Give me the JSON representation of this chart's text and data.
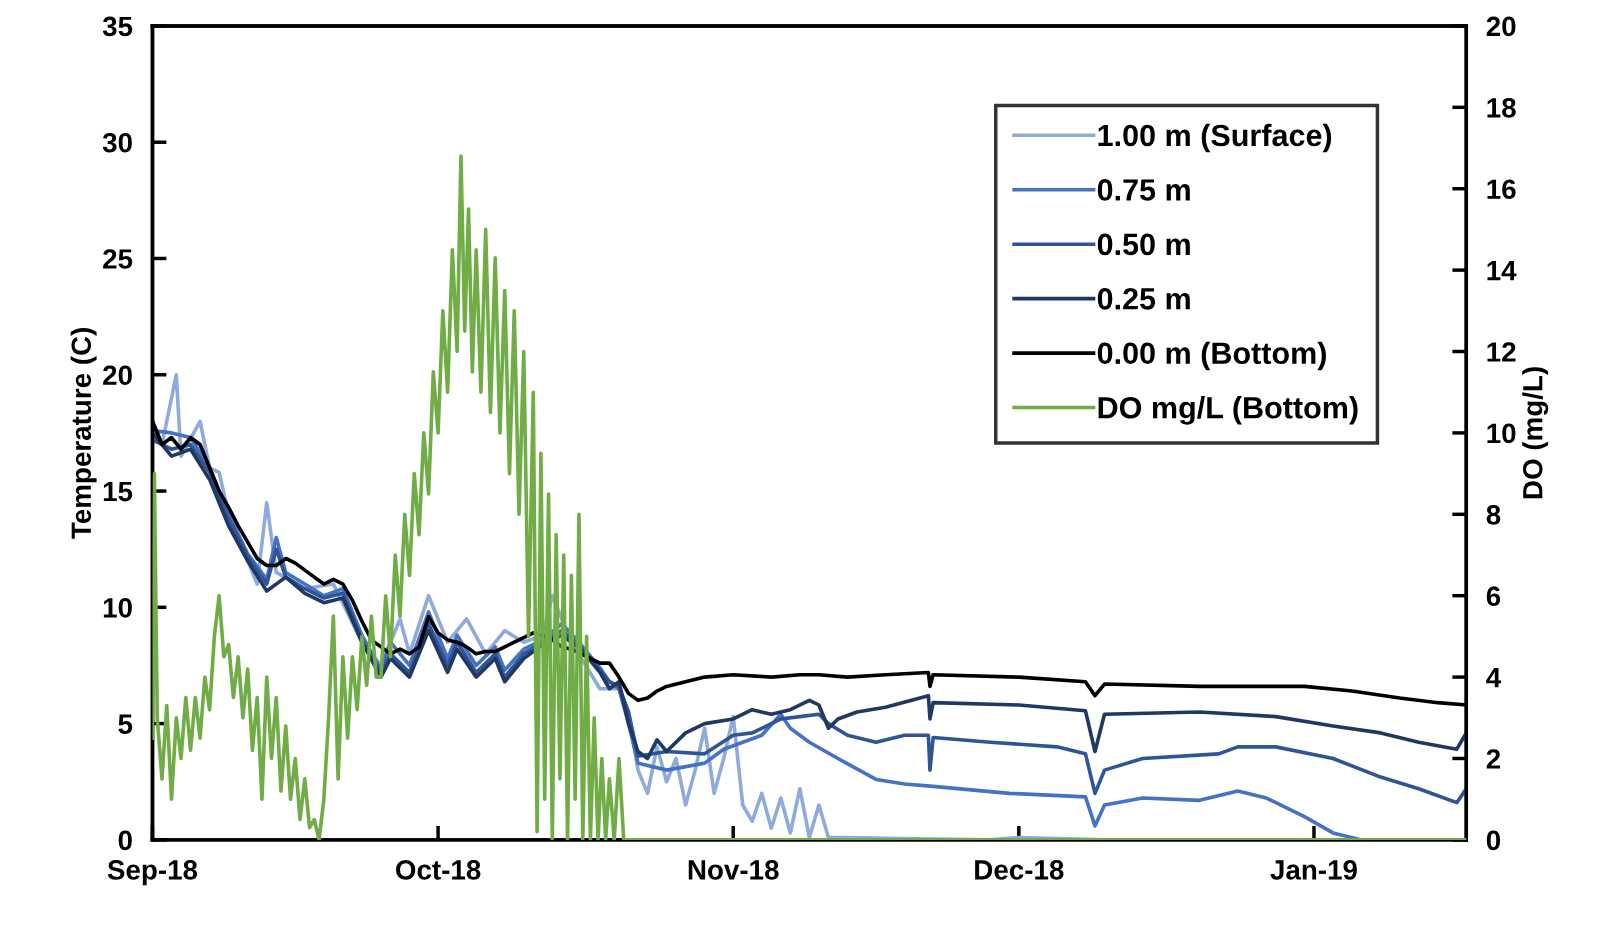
{
  "chart_data": {
    "type": "line",
    "ylabel": "Temperature (C)",
    "y2label": "DO (mg/L)",
    "xlim": [
      "2018-09-01",
      "2019-01-17"
    ],
    "xticks": [
      {
        "value": "2018-09-01",
        "label": "Sep-18"
      },
      {
        "value": "2018-10-01",
        "label": "Oct-18"
      },
      {
        "value": "2018-11-01",
        "label": "Nov-18"
      },
      {
        "value": "2018-12-01",
        "label": "Dec-18"
      },
      {
        "value": "2019-01-01",
        "label": "Jan-19"
      }
    ],
    "ylim": [
      0,
      35
    ],
    "yticks": [
      0,
      5,
      10,
      15,
      20,
      25,
      30,
      35
    ],
    "y2lim": [
      0,
      20
    ],
    "y2ticks": [
      0,
      2,
      4,
      6,
      8,
      10,
      12,
      14,
      16,
      18,
      20
    ],
    "legend": "top right",
    "series": [
      {
        "name": "1.00 m (Surface)",
        "color": "#8faadc",
        "x": [
          "2018-09-01",
          "2018-09-02",
          "2018-09-03T12:00",
          "2018-09-04",
          "2018-09-06",
          "2018-09-07",
          "2018-09-08",
          "2018-09-09",
          "2018-09-12",
          "2018-09-13",
          "2018-09-14",
          "2018-09-17",
          "2018-09-20",
          "2018-09-23",
          "2018-09-25",
          "2018-09-27",
          "2018-09-28",
          "2018-09-30",
          "2018-10-02",
          "2018-10-04",
          "2018-10-06",
          "2018-10-08",
          "2018-10-10",
          "2018-10-12",
          "2018-10-13",
          "2018-10-15",
          "2018-10-18",
          "2018-10-20",
          "2018-10-21",
          "2018-10-22",
          "2018-10-23",
          "2018-10-24",
          "2018-10-25",
          "2018-10-26",
          "2018-10-27",
          "2018-10-28",
          "2018-10-29",
          "2018-10-30",
          "2018-10-31",
          "2018-11-01",
          "2018-11-02",
          "2018-11-03",
          "2018-11-04",
          "2018-11-05",
          "2018-11-06",
          "2018-11-07",
          "2018-11-08",
          "2018-11-09",
          "2018-11-10",
          "2018-11-11",
          "2018-11-13",
          "2018-11-20",
          "2018-11-28",
          "2018-12-01",
          "2018-12-10",
          "2019-01-17"
        ],
        "values": [
          18.0,
          17.0,
          20.0,
          16.5,
          18.0,
          16.0,
          15.8,
          14.0,
          11.0,
          14.5,
          11.5,
          10.8,
          11.0,
          8.5,
          7.5,
          9.5,
          8.0,
          10.5,
          8.5,
          9.5,
          8.0,
          9.0,
          8.5,
          8.8,
          10.5,
          8.5,
          6.5,
          6.5,
          5.5,
          3.0,
          2.0,
          4.0,
          2.5,
          3.5,
          1.5,
          3.0,
          4.8,
          2.0,
          3.5,
          5.3,
          1.5,
          0.8,
          2.0,
          0.5,
          1.8,
          0.3,
          2.2,
          0.1,
          1.5,
          0.1,
          0.1,
          0.05,
          0.0,
          0.1,
          0.0,
          0.0
        ]
      },
      {
        "name": "0.75 m",
        "color": "#4472c4",
        "x": [
          "2018-09-01",
          "2018-09-03",
          "2018-09-05",
          "2018-09-07",
          "2018-09-09",
          "2018-09-11",
          "2018-09-13",
          "2018-09-14",
          "2018-09-15",
          "2018-09-17",
          "2018-09-19",
          "2018-09-21",
          "2018-09-23",
          "2018-09-25",
          "2018-09-26",
          "2018-09-28",
          "2018-09-30",
          "2018-10-02",
          "2018-10-03",
          "2018-10-05",
          "2018-10-07",
          "2018-10-08",
          "2018-10-10",
          "2018-10-12",
          "2018-10-14",
          "2018-10-16",
          "2018-10-18",
          "2018-10-19",
          "2018-10-20",
          "2018-10-21",
          "2018-10-22",
          "2018-10-25",
          "2018-10-29",
          "2018-10-31",
          "2018-11-02",
          "2018-11-04",
          "2018-11-06",
          "2018-11-07",
          "2018-11-09",
          "2018-11-12",
          "2018-11-16",
          "2018-11-19",
          "2018-11-22",
          "2018-11-30",
          "2018-12-08",
          "2018-12-09",
          "2018-12-10",
          "2018-12-14",
          "2018-12-20",
          "2018-12-24",
          "2018-12-27",
          "2018-12-31",
          "2019-01-03",
          "2019-01-06",
          "2019-01-17"
        ],
        "values": [
          17.6,
          17.5,
          17.3,
          16.0,
          14.0,
          12.3,
          11.2,
          13.0,
          11.5,
          11.0,
          10.5,
          10.8,
          8.8,
          7.3,
          8.5,
          7.5,
          9.8,
          7.8,
          8.8,
          7.5,
          8.3,
          7.3,
          8.2,
          8.6,
          9.3,
          8.4,
          7.4,
          6.8,
          6.5,
          5.0,
          3.3,
          3.0,
          3.3,
          3.9,
          4.2,
          4.5,
          5.4,
          4.8,
          4.2,
          3.5,
          2.6,
          2.4,
          2.3,
          2.0,
          1.85,
          0.6,
          1.5,
          1.8,
          1.7,
          2.1,
          1.8,
          1.0,
          0.3,
          0.0,
          0.0
        ]
      },
      {
        "name": "0.50 m",
        "color": "#2f5597",
        "x": [
          "2018-09-01",
          "2018-09-03",
          "2018-09-05",
          "2018-09-07",
          "2018-09-09",
          "2018-09-11",
          "2018-09-13",
          "2018-09-14",
          "2018-09-15",
          "2018-09-17",
          "2018-09-19",
          "2018-09-21",
          "2018-09-23",
          "2018-09-25",
          "2018-09-26",
          "2018-09-28",
          "2018-09-30",
          "2018-10-02",
          "2018-10-03",
          "2018-10-05",
          "2018-10-07",
          "2018-10-08",
          "2018-10-10",
          "2018-10-12",
          "2018-10-14",
          "2018-10-16",
          "2018-10-18",
          "2018-10-19",
          "2018-10-20",
          "2018-10-21",
          "2018-10-22",
          "2018-10-25",
          "2018-10-29",
          "2018-11-01",
          "2018-11-03",
          "2018-11-05",
          "2018-11-06",
          "2018-11-08",
          "2018-11-10",
          "2018-11-11",
          "2018-11-13",
          "2018-11-16",
          "2018-11-19",
          "2018-11-21T12:00",
          "2018-11-21T16:00",
          "2018-11-22",
          "2018-11-28",
          "2018-12-05",
          "2018-12-08",
          "2018-12-09",
          "2018-12-10",
          "2018-12-14",
          "2018-12-22",
          "2018-12-24",
          "2018-12-28",
          "2019-01-03",
          "2019-01-08",
          "2019-01-12",
          "2019-01-16",
          "2019-01-17"
        ],
        "values": [
          17.2,
          16.8,
          17.0,
          15.8,
          13.8,
          12.2,
          11.0,
          12.5,
          11.3,
          10.8,
          10.4,
          10.6,
          8.6,
          7.2,
          8.0,
          7.2,
          9.3,
          7.5,
          8.5,
          7.2,
          8.0,
          7.0,
          8.0,
          8.5,
          9.0,
          8.3,
          7.3,
          6.8,
          6.6,
          5.5,
          3.6,
          3.8,
          3.7,
          4.5,
          4.6,
          5.0,
          5.2,
          5.3,
          5.4,
          5.0,
          4.5,
          4.2,
          4.5,
          4.5,
          3.0,
          4.4,
          4.2,
          4.0,
          3.7,
          2.0,
          3.0,
          3.5,
          3.7,
          4.0,
          4.0,
          3.5,
          2.7,
          2.2,
          1.6,
          2.2
        ]
      },
      {
        "name": "0.25 m",
        "color": "#1f3864",
        "x": [
          "2018-09-01",
          "2018-09-03",
          "2018-09-05",
          "2018-09-07",
          "2018-09-09",
          "2018-09-11",
          "2018-09-13",
          "2018-09-15",
          "2018-09-17",
          "2018-09-19",
          "2018-09-21",
          "2018-09-23",
          "2018-09-25",
          "2018-09-26",
          "2018-09-28",
          "2018-09-30",
          "2018-10-02",
          "2018-10-03",
          "2018-10-05",
          "2018-10-07",
          "2018-10-08",
          "2018-10-10",
          "2018-10-12",
          "2018-10-14",
          "2018-10-16",
          "2018-10-18",
          "2018-10-19",
          "2018-10-20",
          "2018-10-21",
          "2018-10-22",
          "2018-10-23",
          "2018-10-24",
          "2018-10-25",
          "2018-10-27",
          "2018-10-29",
          "2018-11-01",
          "2018-11-03",
          "2018-11-05",
          "2018-11-07",
          "2018-11-09",
          "2018-11-10",
          "2018-11-11",
          "2018-11-12",
          "2018-11-14",
          "2018-11-17",
          "2018-11-21T12:00",
          "2018-11-21T16:00",
          "2018-11-22",
          "2018-12-01",
          "2018-12-08",
          "2018-12-09",
          "2018-12-10",
          "2018-12-20",
          "2018-12-28",
          "2019-01-03",
          "2019-01-08",
          "2019-01-12",
          "2019-01-16",
          "2019-01-17"
        ],
        "values": [
          17.5,
          16.5,
          16.8,
          15.5,
          13.5,
          12.0,
          10.7,
          11.3,
          10.6,
          10.2,
          10.4,
          8.5,
          7.0,
          7.8,
          7.0,
          9.0,
          7.2,
          8.2,
          7.0,
          7.8,
          6.8,
          7.8,
          8.4,
          8.8,
          8.2,
          7.2,
          6.5,
          6.8,
          5.0,
          3.8,
          3.5,
          4.3,
          3.8,
          4.6,
          5.0,
          5.2,
          5.6,
          5.4,
          5.6,
          6.0,
          5.8,
          4.8,
          5.2,
          5.5,
          5.7,
          6.2,
          5.2,
          5.9,
          5.8,
          5.55,
          3.8,
          5.4,
          5.5,
          5.3,
          4.9,
          4.6,
          4.2,
          3.9,
          4.6
        ]
      },
      {
        "name": "0.00 m (Bottom)",
        "color": "#000000",
        "x": [
          "2018-09-01",
          "2018-09-02",
          "2018-09-03",
          "2018-09-04",
          "2018-09-05",
          "2018-09-06",
          "2018-09-07",
          "2018-09-08",
          "2018-09-09",
          "2018-09-10",
          "2018-09-11",
          "2018-09-12",
          "2018-09-13",
          "2018-09-14",
          "2018-09-15",
          "2018-09-16",
          "2018-09-17",
          "2018-09-18",
          "2018-09-19",
          "2018-09-20",
          "2018-09-21",
          "2018-09-22",
          "2018-09-23",
          "2018-09-24",
          "2018-09-25",
          "2018-09-26",
          "2018-09-27",
          "2018-09-28",
          "2018-09-29",
          "2018-09-30",
          "2018-10-01",
          "2018-10-02",
          "2018-10-03",
          "2018-10-04",
          "2018-10-05",
          "2018-10-06",
          "2018-10-07",
          "2018-10-08",
          "2018-10-09",
          "2018-10-10",
          "2018-10-11",
          "2018-10-12",
          "2018-10-13",
          "2018-10-14",
          "2018-10-15",
          "2018-10-16",
          "2018-10-17",
          "2018-10-18",
          "2018-10-19",
          "2018-10-20",
          "2018-10-21",
          "2018-10-22",
          "2018-10-23",
          "2018-10-24",
          "2018-10-25",
          "2018-10-27",
          "2018-10-29",
          "2018-11-01",
          "2018-11-05",
          "2018-11-08",
          "2018-11-10",
          "2018-11-13",
          "2018-11-17",
          "2018-11-21T12:00",
          "2018-11-21T16:00",
          "2018-11-22",
          "2018-12-01",
          "2018-12-08",
          "2018-12-09",
          "2018-12-10",
          "2018-12-20",
          "2018-12-31",
          "2019-01-05",
          "2019-01-10",
          "2019-01-14",
          "2019-01-17"
        ],
        "values": [
          18.0,
          17.0,
          17.3,
          16.8,
          17.3,
          17.0,
          16.0,
          15.0,
          14.3,
          13.5,
          12.8,
          12.1,
          11.8,
          11.8,
          12.1,
          11.9,
          11.6,
          11.3,
          11.0,
          11.2,
          11.0,
          10.3,
          9.4,
          8.6,
          8.3,
          8.0,
          8.2,
          8.0,
          8.3,
          9.6,
          8.9,
          8.6,
          8.5,
          8.3,
          8.0,
          8.1,
          8.1,
          8.3,
          8.5,
          8.7,
          8.9,
          8.8,
          8.6,
          8.3,
          8.2,
          8.0,
          7.8,
          7.6,
          7.6,
          7.0,
          6.3,
          6.0,
          6.1,
          6.4,
          6.6,
          6.8,
          7.0,
          7.1,
          7.0,
          7.1,
          7.1,
          7.0,
          7.1,
          7.2,
          6.6,
          7.1,
          7.0,
          6.8,
          6.2,
          6.7,
          6.6,
          6.6,
          6.4,
          6.1,
          5.9,
          5.8
        ]
      },
      {
        "name": "DO mg/L (Bottom)",
        "color": "#70ad47",
        "axis": "y2",
        "x": [
          "2018-09-01",
          "2018-09-01T04:48",
          "2018-09-01T12:00",
          "2018-09-02",
          "2018-09-02T12:00",
          "2018-09-03",
          "2018-09-03T12:00",
          "2018-09-04",
          "2018-09-04T12:00",
          "2018-09-05",
          "2018-09-05T12:00",
          "2018-09-06",
          "2018-09-06T12:00",
          "2018-09-07",
          "2018-09-07T12:00",
          "2018-09-08",
          "2018-09-08T12:00",
          "2018-09-09",
          "2018-09-09T12:00",
          "2018-09-10",
          "2018-09-10T12:00",
          "2018-09-11",
          "2018-09-11T12:00",
          "2018-09-12",
          "2018-09-12T12:00",
          "2018-09-13",
          "2018-09-13T12:00",
          "2018-09-14",
          "2018-09-14T12:00",
          "2018-09-15",
          "2018-09-15T12:00",
          "2018-09-16",
          "2018-09-16T12:00",
          "2018-09-17",
          "2018-09-17T12:00",
          "2018-09-18",
          "2018-09-18T12:00",
          "2018-09-19",
          "2018-09-19T12:00",
          "2018-09-20",
          "2018-09-20T12:00",
          "2018-09-21",
          "2018-09-21T12:00",
          "2018-09-22",
          "2018-09-22T12:00",
          "2018-09-23",
          "2018-09-23T12:00",
          "2018-09-24",
          "2018-09-24T12:00",
          "2018-09-25",
          "2018-09-25T12:00",
          "2018-09-26",
          "2018-09-26T12:00",
          "2018-09-27",
          "2018-09-27T12:00",
          "2018-09-28",
          "2018-09-28T12:00",
          "2018-09-29",
          "2018-09-29T12:00",
          "2018-09-30",
          "2018-09-30T12:00",
          "2018-10-01",
          "2018-10-01T12:00",
          "2018-10-02",
          "2018-10-02T12:00",
          "2018-10-03",
          "2018-10-03T09:36",
          "2018-10-03T19:12",
          "2018-10-04T04:48",
          "2018-10-04T14:24",
          "2018-10-05",
          "2018-10-05T12:00",
          "2018-10-06",
          "2018-10-06T12:00",
          "2018-10-07",
          "2018-10-07T12:00",
          "2018-10-08",
          "2018-10-08T12:00",
          "2018-10-09",
          "2018-10-09T12:00",
          "2018-10-10",
          "2018-10-10T12:00",
          "2018-10-11",
          "2018-10-11T09:36",
          "2018-10-11T19:12",
          "2018-10-12T04:48",
          "2018-10-12T14:24",
          "2018-10-13",
          "2018-10-13T09:36",
          "2018-10-13T19:12",
          "2018-10-14T04:48",
          "2018-10-14T14:24",
          "2018-10-15",
          "2018-10-15T09:36",
          "2018-10-15T19:12",
          "2018-10-16T04:48",
          "2018-10-16T14:24",
          "2018-10-17",
          "2018-10-17T09:36",
          "2018-10-17T19:12",
          "2018-10-18T04:48",
          "2018-10-18T14:24",
          "2018-10-19",
          "2018-10-19T12:00",
          "2018-10-20",
          "2018-10-20T12:00",
          "2018-10-21",
          "2019-01-17"
        ],
        "values": [
          2.5,
          9.0,
          3.0,
          1.5,
          3.3,
          1.0,
          3.0,
          2.0,
          3.5,
          2.2,
          3.5,
          2.5,
          4.0,
          3.2,
          5.0,
          6.0,
          4.5,
          4.8,
          3.5,
          4.5,
          3.0,
          4.2,
          2.2,
          3.5,
          1.0,
          4.0,
          2.0,
          3.5,
          1.2,
          2.8,
          1.0,
          2.0,
          0.5,
          1.5,
          0.3,
          0.5,
          0.0,
          1.0,
          3.0,
          5.5,
          1.5,
          4.5,
          2.5,
          4.5,
          3.2,
          5.0,
          3.8,
          5.5,
          4.0,
          4.0,
          6.0,
          4.5,
          7.0,
          5.5,
          8.0,
          6.5,
          9.0,
          7.5,
          10.0,
          8.5,
          11.5,
          10.0,
          13.0,
          11.0,
          14.5,
          12.0,
          16.8,
          12.5,
          15.5,
          11.5,
          14.5,
          11.0,
          15.0,
          10.5,
          14.3,
          10.0,
          13.5,
          9.0,
          13.0,
          8.0,
          12.0,
          5.0,
          11.0,
          0.2,
          9.5,
          1.0,
          8.5,
          0.0,
          7.5,
          1.5,
          7.0,
          0.0,
          6.5,
          1.0,
          8.0,
          0.0,
          5.0,
          0.0,
          3.0,
          0.0,
          2.0,
          0.0,
          1.5,
          0.0,
          2.0,
          0.0,
          0.0,
          0.0
        ]
      }
    ]
  }
}
